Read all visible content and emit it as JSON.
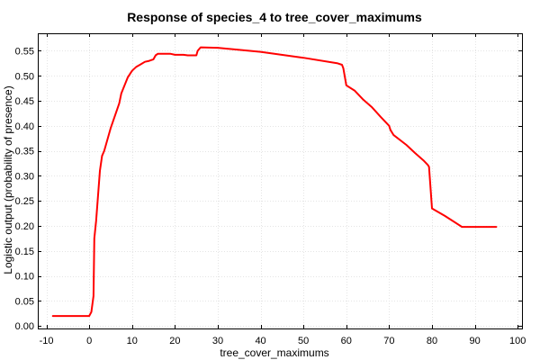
{
  "chart_data": {
    "type": "line",
    "title": "Response of species_4 to tree_cover_maximums",
    "xlabel": "tree_cover_maximums",
    "ylabel": "Logistic output (probability of presence)",
    "xlim": [
      -12,
      101
    ],
    "ylim": [
      -0.005,
      0.585
    ],
    "xticks": [
      -10,
      0,
      10,
      20,
      30,
      40,
      50,
      60,
      70,
      80,
      90,
      100
    ],
    "yticks": [
      0.0,
      0.05,
      0.1,
      0.15,
      0.2,
      0.25,
      0.3,
      0.35,
      0.4,
      0.45,
      0.5,
      0.55
    ],
    "xtick_labels": [
      "-10",
      "0",
      "10",
      "20",
      "30",
      "40",
      "50",
      "60",
      "70",
      "80",
      "90",
      "100"
    ],
    "ytick_labels": [
      "0.00",
      "0.05",
      "0.10",
      "0.15",
      "0.20",
      "0.25",
      "0.30",
      "0.35",
      "0.40",
      "0.45",
      "0.50",
      "0.55"
    ],
    "grid": true,
    "line_color": "#ff0000",
    "series": [
      {
        "x": [
          -8.5,
          0,
          0.5,
          1,
          1.2,
          1.6,
          2.5,
          3,
          3.5,
          5,
          7,
          7.5,
          9,
          10,
          11,
          12,
          13,
          14,
          15,
          15.5,
          16,
          19,
          20,
          22,
          23,
          24,
          25,
          25.3,
          26,
          30,
          40,
          50,
          58,
          59,
          59.3,
          60,
          62,
          64,
          66,
          68,
          70,
          70.3,
          71,
          74,
          76,
          78,
          79,
          79.3,
          80,
          83,
          87,
          95
        ],
        "y": [
          0.02,
          0.02,
          0.028,
          0.06,
          0.175,
          0.21,
          0.31,
          0.34,
          0.35,
          0.395,
          0.445,
          0.465,
          0.497,
          0.51,
          0.518,
          0.523,
          0.528,
          0.53,
          0.533,
          0.541,
          0.544,
          0.544,
          0.542,
          0.542,
          0.541,
          0.541,
          0.541,
          0.55,
          0.557,
          0.556,
          0.548,
          0.536,
          0.525,
          0.522,
          0.515,
          0.481,
          0.47,
          0.452,
          0.437,
          0.418,
          0.4,
          0.392,
          0.382,
          0.362,
          0.346,
          0.331,
          0.322,
          0.318,
          0.235,
          0.22,
          0.198,
          0.198
        ]
      }
    ]
  }
}
